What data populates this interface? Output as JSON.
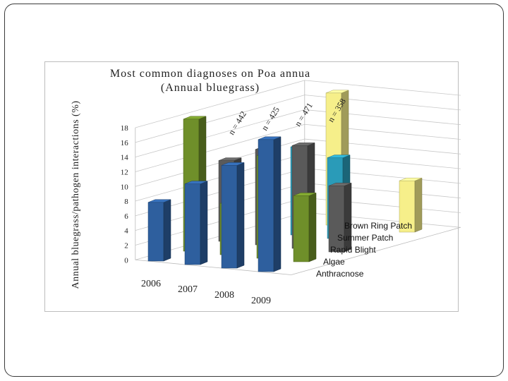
{
  "colors": {
    "Anthracnose": "#2e5f9e",
    "Algae": "#6f8f2a",
    "Rapid Blight": "#5a5a5a",
    "Summer Patch": "#2a9bb8",
    "Brown Ring Patch": "#f6ef8a"
  },
  "chart_data": {
    "type": "bar",
    "title": "Most common diagnoses on Poa annua",
    "subtitle": "(Annual bluegrass)",
    "ylabel": "Annual bluegrass/pathogen interactions (%)",
    "categories": [
      "2006",
      "2007",
      "2008",
      "2009"
    ],
    "sample_sizes": [
      "n = 442",
      "n = 425",
      "n = 471",
      "n = 358"
    ],
    "yticks": [
      "0",
      "2",
      "4",
      "6",
      "8",
      "10",
      "12",
      "14",
      "16",
      "18"
    ],
    "ylim": [
      0,
      18
    ],
    "grid": true,
    "legend": "depth axis (right side)",
    "series": [
      {
        "name": "Anthracnose",
        "values": [
          8,
          11,
          14,
          18
        ]
      },
      {
        "name": "Algae",
        "values": [
          18,
          7,
          14,
          9
        ]
      },
      {
        "name": "Rapid Blight",
        "values": [
          11,
          13,
          14,
          9
        ]
      },
      {
        "name": "Summer Patch",
        "values": [
          0,
          12,
          11,
          0
        ]
      },
      {
        "name": "Brown Ring Patch",
        "values": [
          0,
          18,
          0,
          7
        ]
      }
    ]
  }
}
